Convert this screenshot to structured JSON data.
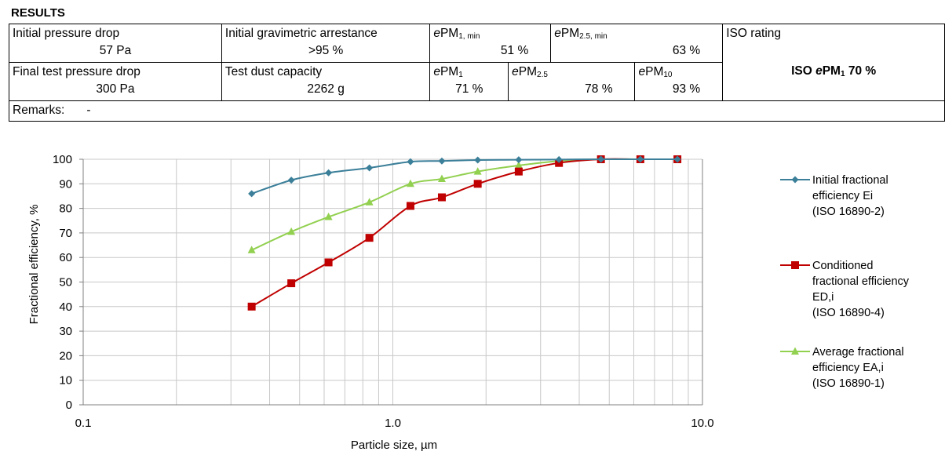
{
  "results": {
    "title": "RESULTS",
    "initial_pressure_drop": {
      "label": "Initial pressure drop",
      "value": "57 Pa"
    },
    "initial_gravimetric_arrestance": {
      "label": "Initial gravimetric arrestance",
      "value": ">95 %"
    },
    "epm1_min": {
      "prefix": "e",
      "base": "PM",
      "sub": "1, min",
      "value": "51 %"
    },
    "epm25_min": {
      "prefix": "e",
      "base": "PM",
      "sub": "2.5, min",
      "value": "63 %"
    },
    "iso_rating": {
      "label": "ISO rating",
      "value_prefix": "ISO ",
      "value_e": "e",
      "value_base": "PM",
      "value_sub": "1",
      "value_suffix": " 70 %"
    },
    "final_test_pressure_drop": {
      "label": "Final test pressure drop",
      "value": "300 Pa"
    },
    "test_dust_capacity": {
      "label": "Test dust capacity",
      "value": "2262 g"
    },
    "epm1": {
      "prefix": "e",
      "base": "PM",
      "sub": "1",
      "value": "71 %"
    },
    "epm25": {
      "prefix": "e",
      "base": "PM",
      "sub": "2.5",
      "value": "78 %"
    },
    "epm10": {
      "prefix": "e",
      "base": "PM",
      "sub": "10",
      "value": "93 %"
    },
    "remarks": {
      "label": "Remarks:",
      "value": "-"
    }
  },
  "chart_data": {
    "type": "line",
    "xscale": "log",
    "xlim": [
      0.1,
      10.0
    ],
    "ylim": [
      0,
      100
    ],
    "grid": true,
    "xlabel": "Particle size, µm",
    "ylabel": "Fractional efficiency, %",
    "x_tick_labels": [
      "0.1",
      "1.0",
      "10.0"
    ],
    "y_tick_labels": [
      "0",
      "10",
      "20",
      "30",
      "40",
      "50",
      "60",
      "70",
      "80",
      "90",
      "100"
    ],
    "legend_placement": "right",
    "series": [
      {
        "name": [
          "Initial fractional",
          "efficiency Ei",
          "(ISO 16890-2)"
        ],
        "color": "#3b7f99",
        "marker": "diamond",
        "x": [
          0.35,
          0.47,
          0.62,
          0.84,
          1.14,
          1.44,
          1.88,
          2.55,
          3.44,
          4.7,
          6.3,
          8.3
        ],
        "y": [
          86,
          91.5,
          94.5,
          96.5,
          99,
          99.3,
          99.7,
          99.8,
          99.9,
          100,
          100,
          100
        ]
      },
      {
        "name": [
          "Conditioned",
          "fractional efficiency",
          "ED,i",
          "(ISO 16890-4)"
        ],
        "color": "#c00000",
        "marker": "square",
        "x": [
          0.35,
          0.47,
          0.62,
          0.84,
          1.14,
          1.44,
          1.88,
          2.55,
          3.44,
          4.7,
          6.3,
          8.3
        ],
        "y": [
          40,
          49.5,
          58,
          68,
          81,
          84.5,
          90,
          95,
          98.5,
          100,
          100,
          100
        ]
      },
      {
        "name": [
          "Average fractional",
          "efficiency EA,i",
          "(ISO 16890-1)"
        ],
        "color": "#92d050",
        "marker": "triangle",
        "x": [
          0.35,
          0.47,
          0.62,
          0.84,
          1.14,
          1.44,
          1.88,
          2.55,
          3.44,
          4.7,
          6.3,
          8.3
        ],
        "y": [
          63,
          70.5,
          76.5,
          82.5,
          90,
          92,
          95,
          97.5,
          99.3,
          100,
          100,
          100
        ]
      }
    ]
  }
}
